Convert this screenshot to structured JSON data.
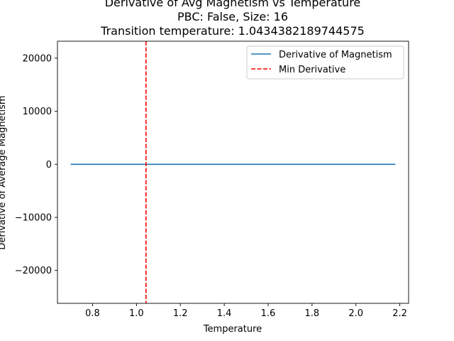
{
  "chart_data": {
    "type": "line",
    "title_lines": [
      "Derivative of Avg Magnetism vs Temperature",
      "PBC: False, Size: 16",
      "Transition temperature: 1.0434382189744575"
    ],
    "xlabel": "Temperature",
    "ylabel": "Derivative of Average Magnetism",
    "xlim": [
      0.64,
      2.24
    ],
    "ylim": [
      -26200,
      23200
    ],
    "xticks": [
      0.8,
      1.0,
      1.2,
      1.4,
      1.6,
      1.8,
      2.0,
      2.2
    ],
    "xtick_labels": [
      "0.8",
      "1.0",
      "1.2",
      "1.4",
      "1.6",
      "1.8",
      "2.0",
      "2.2"
    ],
    "yticks": [
      -20000,
      -10000,
      0,
      10000,
      20000
    ],
    "ytick_labels": [
      "−20000",
      "−10000",
      "0",
      "10000",
      "20000"
    ],
    "grid": false,
    "legend_position": "top-right",
    "series": [
      {
        "name": "Derivative of Magnetism",
        "style": "solid",
        "color": "#1f77b4",
        "x": [
          0.7,
          2.18
        ],
        "y": [
          0,
          0
        ]
      }
    ],
    "vlines": [
      {
        "name": "Min Derivative",
        "style": "dashed",
        "color": "#ff0000",
        "x": 1.0434382189744575
      }
    ]
  }
}
